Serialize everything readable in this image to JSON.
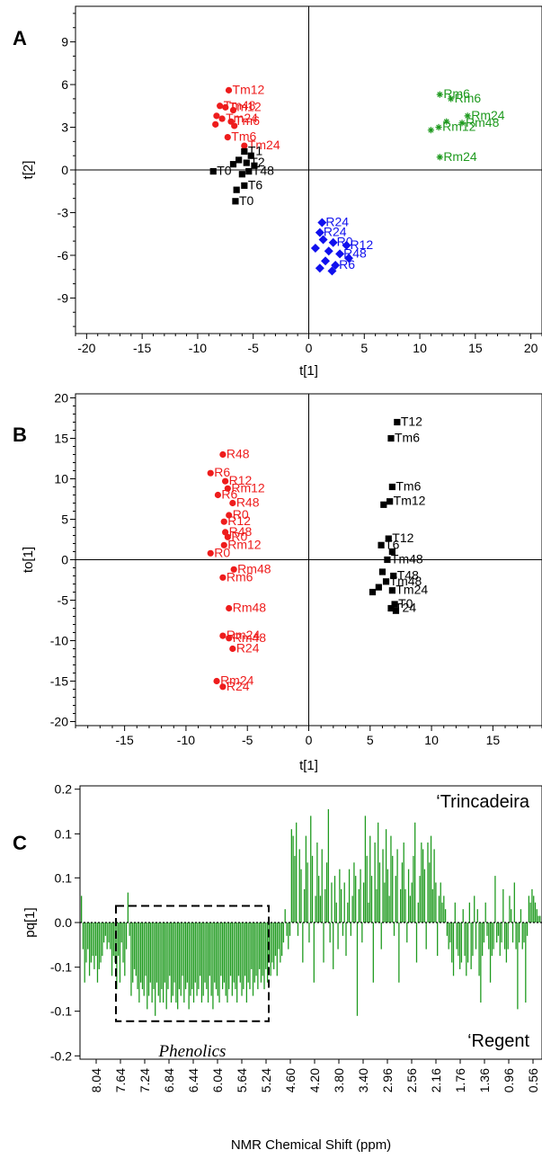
{
  "colors": {
    "T": "#000000",
    "Tm": "#000000",
    "R": "#1010ee",
    "Rm": "#1f9a1f",
    "red": "#ee1c1c",
    "bar": "#1e9a1e"
  },
  "chart_data": [
    {
      "panel": "A",
      "type": "scatter",
      "xlabel": "t[1]",
      "ylabel": "t[2]",
      "xlim": [
        -21,
        21
      ],
      "ylim": [
        -11.5,
        11.5
      ],
      "xticks": [
        -20,
        -15,
        -10,
        -5,
        0,
        5,
        10,
        15,
        20
      ],
      "yticks": [
        -9,
        -6,
        -3,
        0,
        3,
        6,
        9
      ],
      "groups": [
        {
          "color_key": "red",
          "marker": "circle",
          "points": [
            {
              "x": -7.2,
              "y": 5.6,
              "label": "Tm12"
            },
            {
              "x": -8.0,
              "y": 4.5,
              "label": "Tm48"
            },
            {
              "x": -7.5,
              "y": 4.4,
              "label": "Tm12"
            },
            {
              "x": -6.8,
              "y": 4.2,
              "label": ""
            },
            {
              "x": -8.3,
              "y": 3.8,
              "label": ""
            },
            {
              "x": -7.8,
              "y": 3.6,
              "label": "Tm24"
            },
            {
              "x": -7.0,
              "y": 3.4,
              "label": "Tm6"
            },
            {
              "x": -8.4,
              "y": 3.2,
              "label": ""
            },
            {
              "x": -6.7,
              "y": 3.1,
              "label": ""
            },
            {
              "x": -7.3,
              "y": 2.3,
              "label": "Tm6"
            },
            {
              "x": -5.8,
              "y": 1.7,
              "label": "Tm24"
            }
          ]
        },
        {
          "color_key": "T",
          "marker": "square",
          "points": [
            {
              "x": -5.8,
              "y": 1.3,
              "label": "T1"
            },
            {
              "x": -5.2,
              "y": 1.0,
              "label": ""
            },
            {
              "x": -6.3,
              "y": 0.7,
              "label": ""
            },
            {
              "x": -5.6,
              "y": 0.5,
              "label": "T2"
            },
            {
              "x": -4.9,
              "y": 0.3,
              "label": ""
            },
            {
              "x": -6.8,
              "y": 0.4,
              "label": ""
            },
            {
              "x": -5.4,
              "y": -0.1,
              "label": "T48"
            },
            {
              "x": -8.6,
              "y": -0.1,
              "label": "T0"
            },
            {
              "x": -6.0,
              "y": -0.3,
              "label": ""
            },
            {
              "x": -5.8,
              "y": -1.1,
              "label": "T6"
            },
            {
              "x": -6.5,
              "y": -1.4,
              "label": ""
            },
            {
              "x": -6.6,
              "y": -2.2,
              "label": "T0"
            }
          ]
        },
        {
          "color_key": "R",
          "marker": "diamond",
          "points": [
            {
              "x": 1.2,
              "y": -3.7,
              "label": "R24"
            },
            {
              "x": 1.0,
              "y": -4.4,
              "label": "R24"
            },
            {
              "x": 1.3,
              "y": -4.9,
              "label": ""
            },
            {
              "x": 2.2,
              "y": -5.1,
              "label": "R0"
            },
            {
              "x": 3.4,
              "y": -5.3,
              "label": "R12"
            },
            {
              "x": 0.6,
              "y": -5.5,
              "label": ""
            },
            {
              "x": 1.8,
              "y": -5.7,
              "label": ""
            },
            {
              "x": 2.8,
              "y": -5.9,
              "label": "R48"
            },
            {
              "x": 3.6,
              "y": -6.2,
              "label": ""
            },
            {
              "x": 1.5,
              "y": -6.4,
              "label": ""
            },
            {
              "x": 2.4,
              "y": -6.7,
              "label": "R6"
            },
            {
              "x": 1.0,
              "y": -6.9,
              "label": ""
            },
            {
              "x": 2.1,
              "y": -7.1,
              "label": ""
            }
          ]
        },
        {
          "color_key": "Rm",
          "marker": "asterisk",
          "points": [
            {
              "x": 11.8,
              "y": 5.3,
              "label": "Rm6"
            },
            {
              "x": 12.8,
              "y": 5.0,
              "label": "Rm6"
            },
            {
              "x": 14.3,
              "y": 3.8,
              "label": "Rm24"
            },
            {
              "x": 12.4,
              "y": 3.4,
              "label": ""
            },
            {
              "x": 13.8,
              "y": 3.3,
              "label": "Rm48"
            },
            {
              "x": 11.7,
              "y": 3.0,
              "label": "Rm12"
            },
            {
              "x": 11.0,
              "y": 2.8,
              "label": ""
            },
            {
              "x": 11.8,
              "y": 0.9,
              "label": "Rm24"
            }
          ]
        }
      ]
    },
    {
      "panel": "B",
      "type": "scatter",
      "xlabel": "t[1]",
      "ylabel": "to[1]",
      "xlim": [
        -19,
        19
      ],
      "ylim": [
        -20.5,
        20.5
      ],
      "xticks": [
        -15,
        -10,
        -5,
        0,
        5,
        10,
        15
      ],
      "yticks": [
        -20,
        -15,
        -10,
        -5,
        0,
        5,
        10,
        15,
        20
      ],
      "groups": [
        {
          "color_key": "red",
          "marker": "circle",
          "points": [
            {
              "x": -7.0,
              "y": 13.0,
              "label": "R48"
            },
            {
              "x": -8.0,
              "y": 10.7,
              "label": "R6"
            },
            {
              "x": -6.8,
              "y": 9.7,
              "label": "R12"
            },
            {
              "x": -6.6,
              "y": 8.8,
              "label": "Rm12"
            },
            {
              "x": -7.4,
              "y": 8.0,
              "label": "R6"
            },
            {
              "x": -6.2,
              "y": 7.0,
              "label": "R48"
            },
            {
              "x": -6.5,
              "y": 5.5,
              "label": "R0"
            },
            {
              "x": -6.9,
              "y": 4.7,
              "label": "R12"
            },
            {
              "x": -6.8,
              "y": 3.4,
              "label": "R48"
            },
            {
              "x": -6.6,
              "y": 2.8,
              "label": "R0"
            },
            {
              "x": -6.9,
              "y": 1.8,
              "label": "Rm12"
            },
            {
              "x": -8.0,
              "y": 0.8,
              "label": "R0"
            },
            {
              "x": -6.1,
              "y": -1.2,
              "label": "Rm48"
            },
            {
              "x": -7.0,
              "y": -2.2,
              "label": "Rm6"
            },
            {
              "x": -6.5,
              "y": -6.0,
              "label": "Rm48"
            },
            {
              "x": -7.0,
              "y": -9.4,
              "label": "Rm24"
            },
            {
              "x": -6.5,
              "y": -9.7,
              "label": "Rm48"
            },
            {
              "x": -6.2,
              "y": -11.0,
              "label": "R24"
            },
            {
              "x": -7.5,
              "y": -15.0,
              "label": "Rm24"
            },
            {
              "x": -7.0,
              "y": -15.7,
              "label": "R24"
            }
          ]
        },
        {
          "color_key": "T",
          "marker": "square",
          "points": [
            {
              "x": 7.2,
              "y": 17.0,
              "label": "T12"
            },
            {
              "x": 6.7,
              "y": 15.0,
              "label": "Tm6"
            },
            {
              "x": 6.8,
              "y": 9.0,
              "label": "Tm6"
            },
            {
              "x": 6.6,
              "y": 7.2,
              "label": "Tm12"
            },
            {
              "x": 6.1,
              "y": 6.8,
              "label": ""
            },
            {
              "x": 6.5,
              "y": 2.6,
              "label": "T12"
            },
            {
              "x": 5.9,
              "y": 1.8,
              "label": "T6"
            },
            {
              "x": 6.8,
              "y": 1.0,
              "label": ""
            },
            {
              "x": 6.4,
              "y": 0.0,
              "label": "Tm48"
            },
            {
              "x": 6.0,
              "y": -1.5,
              "label": ""
            },
            {
              "x": 6.9,
              "y": -2.0,
              "label": "T48"
            },
            {
              "x": 6.3,
              "y": -2.7,
              "label": "Tm48"
            },
            {
              "x": 5.7,
              "y": -3.4,
              "label": ""
            },
            {
              "x": 6.8,
              "y": -3.8,
              "label": "Tm24"
            },
            {
              "x": 5.2,
              "y": -4.0,
              "label": ""
            },
            {
              "x": 7.0,
              "y": -5.5,
              "label": "T0"
            },
            {
              "x": 6.7,
              "y": -6.0,
              "label": "T24"
            },
            {
              "x": 7.1,
              "y": -6.3,
              "label": ""
            }
          ]
        }
      ]
    },
    {
      "panel": "C",
      "type": "bar",
      "xlabel": "NMR Chemical Shift (ppm)",
      "ylabel": "pq[1]",
      "ylim": [
        -0.205,
        0.205
      ],
      "ytick_labels": [
        "0.2",
        "0.1",
        "0.1",
        "0.0",
        "-0.1",
        "-0.1",
        "-0.2"
      ],
      "ytick_values": [
        0.2,
        0.133,
        0.067,
        0.0,
        -0.067,
        -0.133,
        -0.2
      ],
      "xtick_labels": [
        "8.04",
        "7.64",
        "7.24",
        "6.84",
        "6.44",
        "6.04",
        "5.64",
        "5.24",
        "4.60",
        "4.20",
        "3.80",
        "3.40",
        "2.96",
        "2.56",
        "2.16",
        "1.76",
        "1.36",
        "0.96",
        "0.56"
      ],
      "top_label": "‘Trincadeira",
      "bottom_label": "‘Regent",
      "box_label": "Phenolics",
      "box_range": {
        "from_index": 1,
        "to_index": 7,
        "ymin": -0.148,
        "ymax": 0.025
      },
      "values": [
        0.04,
        -0.04,
        -0.09,
        -0.06,
        -0.04,
        -0.08,
        -0.06,
        -0.05,
        -0.07,
        -0.05,
        -0.09,
        -0.07,
        -0.06,
        -0.05,
        -0.03,
        -0.02,
        -0.04,
        -0.03,
        -0.04,
        -0.08,
        -0.05,
        -0.06,
        -0.1,
        -0.05,
        -0.09,
        -0.03,
        -0.06,
        -0.08,
        -0.04,
        0.045,
        -0.02,
        -0.11,
        -0.09,
        -0.07,
        -0.08,
        -0.1,
        -0.12,
        -0.09,
        -0.1,
        -0.11,
        -0.08,
        -0.13,
        -0.11,
        -0.09,
        -0.12,
        -0.1,
        -0.14,
        -0.09,
        -0.11,
        -0.12,
        -0.1,
        -0.12,
        -0.09,
        -0.13,
        -0.1,
        -0.08,
        -0.12,
        -0.11,
        -0.09,
        -0.12,
        -0.13,
        -0.1,
        -0.11,
        -0.08,
        -0.12,
        -0.1,
        -0.09,
        -0.13,
        -0.11,
        -0.1,
        -0.12,
        -0.09,
        -0.11,
        -0.1,
        -0.08,
        -0.12,
        -0.11,
        -0.09,
        -0.1,
        -0.12,
        -0.08,
        -0.11,
        -0.13,
        -0.09,
        -0.1,
        -0.11,
        -0.12,
        -0.08,
        -0.1,
        -0.09,
        -0.11,
        -0.12,
        -0.1,
        -0.08,
        -0.11,
        -0.09,
        -0.1,
        -0.12,
        -0.08,
        -0.09,
        -0.11,
        -0.1,
        -0.08,
        -0.12,
        -0.09,
        -0.1,
        -0.07,
        -0.11,
        -0.09,
        -0.08,
        -0.1,
        -0.07,
        -0.09,
        -0.08,
        -0.1,
        -0.07,
        -0.09,
        -0.06,
        -0.08,
        -0.06,
        -0.07,
        -0.05,
        -0.08,
        -0.04,
        -0.06,
        -0.05,
        -0.03,
        0.02,
        -0.02,
        -0.04,
        -0.02,
        0.14,
        0.13,
        0.1,
        0.15,
        -0.02,
        0.11,
        0.08,
        -0.06,
        0.05,
        0.13,
        0.09,
        -0.03,
        0.16,
        0.1,
        -0.09,
        0.04,
        0.12,
        0.07,
        0.04,
        0.11,
        -0.06,
        0.05,
        0.09,
        0.17,
        -0.03,
        0.06,
        -0.07,
        0.07,
        0.03,
        -0.04,
        0.08,
        0.05,
        -0.02,
        0.06,
        -0.05,
        0.03,
        0.08,
        -0.02,
        0.04,
        0.09,
        0.07,
        -0.14,
        0.05,
        0.08,
        -0.03,
        0.06,
        0.16,
        0.1,
        0.03,
        0.13,
        0.07,
        -0.09,
        0.12,
        0.05,
        0.15,
        0.09,
        -0.04,
        0.11,
        0.06,
        0.14,
        0.08,
        0.04,
        0.13,
        0.1,
        -0.02,
        0.07,
        0.11,
        -0.09,
        0.05,
        0.09,
        0.12,
        0.05,
        -0.03,
        0.08,
        0.04,
        0.06,
        0.1,
        0.15,
        -0.06,
        0.03,
        0.07,
        0.12,
        0.11,
        0.08,
        -0.04,
        0.12,
        0.09,
        0.13,
        0.05,
        0.11,
        0.06,
        -0.05,
        0.04,
        0.06,
        0.03,
        0.04,
        0.02,
        -0.02,
        -0.04,
        -0.03,
        -0.06,
        -0.08,
        0.03,
        -0.04,
        -0.05,
        -0.07,
        -0.06,
        0.02,
        -0.05,
        -0.08,
        -0.06,
        0.03,
        -0.07,
        -0.05,
        0.04,
        -0.04,
        0.02,
        -0.08,
        -0.12,
        -0.05,
        -0.03,
        0.03,
        -0.02,
        -0.04,
        -0.09,
        -0.05,
        -0.04,
        0.07,
        -0.03,
        -0.02,
        -0.05,
        -0.03,
        0.05,
        -0.04,
        -0.06,
        -0.04,
        0.04,
        0.02,
        -0.03,
        0.06,
        -0.04,
        -0.13,
        -0.03,
        0.02,
        -0.04,
        -0.03,
        -0.12,
        -0.02,
        0.04,
        0.03,
        0.05,
        0.04,
        0.03,
        0.02,
        0.01,
        0.01
      ]
    }
  ]
}
